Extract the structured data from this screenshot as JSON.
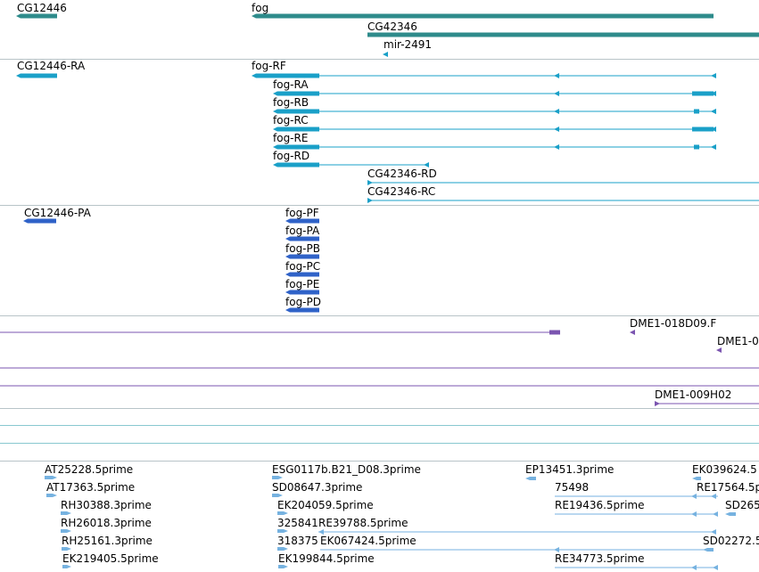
{
  "colors": {
    "gene": "#2e8b8b",
    "transcript": "#1aa0c8",
    "protein": "#2f62c8",
    "clone": "#7b55b0",
    "est": "#76b2e0",
    "separator": "#b8c4c8",
    "separator_teal": "#88c8d0"
  },
  "tracks": {
    "genes": {
      "labels": [
        "CG12446",
        "fog",
        "CG42346",
        "mir-2491"
      ]
    },
    "transcripts": {
      "labels": [
        "CG12446-RA",
        "fog-RF",
        "fog-RA",
        "fog-RB",
        "fog-RC",
        "fog-RE",
        "fog-RD",
        "CG42346-RD",
        "CG42346-RC"
      ]
    },
    "proteins": {
      "labels": [
        "CG12446-PA",
        "fog-PF",
        "fog-PA",
        "fog-PB",
        "fog-PC",
        "fog-PE",
        "fog-PD"
      ]
    },
    "clones": {
      "labels": [
        "DME1-018D09.F",
        "DME1-0",
        "DME1-009H02"
      ]
    },
    "ests": {
      "labels": [
        "AT25228.5prime",
        "AT17363.5prime",
        "RH30388.3prime",
        "RH26018.3prime",
        "RH25161.3prime",
        "EK219405.5prime",
        "ESG0117b.B21_D08.3prime",
        "SD08647.3prime",
        "EK204059.5prime",
        "325841",
        "RE39788.5prime",
        "318375",
        "EK067424.5prime",
        "EK199844.5prime",
        "EP13451.3prime",
        "75498",
        "RE19436.5prime",
        "RE34773.5prime",
        "EK039624.5",
        "RE17564.5p",
        "SD265",
        "SD02272.5"
      ]
    }
  }
}
